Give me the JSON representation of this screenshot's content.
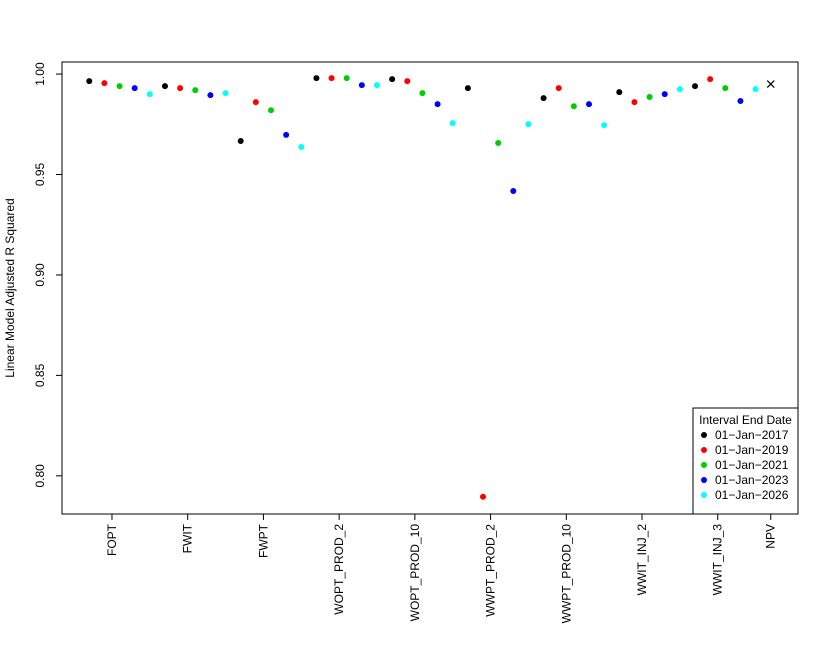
{
  "chart_data": {
    "type": "scatter",
    "y_label": "Linear Model Adjusted R Squared",
    "xlim": [
      -0.8,
      47.8
    ],
    "ylim": [
      0.781,
      1.006
    ],
    "xticks": [
      {
        "value": 2.5,
        "label": "FOPT"
      },
      {
        "value": 7.5,
        "label": "FWIT"
      },
      {
        "value": 12.5,
        "label": "FWPT"
      },
      {
        "value": 17.5,
        "label": "WOPT_PROD_2"
      },
      {
        "value": 22.5,
        "label": "WOPT_PROD_10"
      },
      {
        "value": 27.5,
        "label": "WWPT_PROD_2"
      },
      {
        "value": 32.5,
        "label": "WWPT_PROD_10"
      },
      {
        "value": 37.5,
        "label": "WWIT_INJ_2"
      },
      {
        "value": 42.5,
        "label": "WWIT_INJ_3"
      },
      {
        "value": 46,
        "label": "NPV"
      }
    ],
    "yticks": [
      {
        "value": 0.8,
        "label": "0.80"
      },
      0.85,
      {
        "value": 0.9,
        "label": "0.90"
      },
      0.95,
      {
        "value": 1,
        "label": "1.00"
      }
    ],
    "legend_title": "Interval End Date",
    "legend_position": "bottomright",
    "series": [
      {
        "name": "01−Jan−2017",
        "color": "#000000",
        "x": [
          1,
          6,
          11,
          16,
          21,
          26,
          31,
          36,
          41
        ],
        "values": [
          0.9965,
          0.994,
          0.9667,
          0.998,
          0.9975,
          0.993,
          0.988,
          0.991,
          0.994
        ]
      },
      {
        "name": "01−Jan−2019",
        "color": "#ff0000",
        "x": [
          2,
          7,
          12,
          17,
          22,
          27,
          32,
          37,
          42
        ],
        "values": [
          0.9955,
          0.993,
          0.986,
          0.998,
          0.9965,
          0.7896,
          0.993,
          0.986,
          0.9975
        ]
      },
      {
        "name": "01−Jan−2021",
        "color": "#00cd00",
        "x": [
          3,
          8,
          13,
          18,
          23,
          28,
          33,
          38,
          43
        ],
        "values": [
          0.994,
          0.992,
          0.982,
          0.998,
          0.9905,
          0.9657,
          0.984,
          0.9886,
          0.993
        ]
      },
      {
        "name": "01−Jan−2023",
        "color": "#0000ff",
        "x": [
          4,
          9,
          14,
          19,
          24,
          29,
          34,
          39,
          44
        ],
        "values": [
          0.993,
          0.9895,
          0.9697,
          0.9945,
          0.985,
          0.9418,
          0.985,
          0.99,
          0.9866
        ]
      },
      {
        "name": "01−Jan−2026",
        "color": "#00ffff",
        "x": [
          5,
          10,
          15,
          20,
          25,
          30,
          35,
          40,
          45
        ],
        "values": [
          0.99,
          0.9905,
          0.9637,
          0.9945,
          0.9756,
          0.975,
          0.9746,
          0.9925,
          0.9925
        ]
      }
    ],
    "extra_point": {
      "x": 46,
      "value": 0.995,
      "color": "#000000",
      "marker": "x"
    }
  }
}
